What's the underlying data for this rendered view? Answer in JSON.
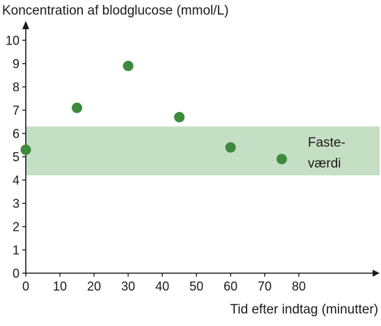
{
  "chart_data": {
    "type": "scatter",
    "title": "Koncentration af blodglucose (mmol/L)",
    "xlabel": "Tid efter indtag (minutter)",
    "ylabel": "",
    "xlim": [
      0,
      100
    ],
    "ylim": [
      0,
      10.5
    ],
    "x_ticks": [
      0,
      10,
      20,
      30,
      40,
      50,
      60,
      70,
      80
    ],
    "y_ticks": [
      0,
      1,
      2,
      3,
      4,
      5,
      6,
      7,
      8,
      9,
      10
    ],
    "grid": false,
    "points": [
      {
        "x": 0,
        "y": 5.3
      },
      {
        "x": 15,
        "y": 7.1
      },
      {
        "x": 30,
        "y": 8.9
      },
      {
        "x": 45,
        "y": 6.7
      },
      {
        "x": 60,
        "y": 5.4
      },
      {
        "x": 75,
        "y": 4.9
      }
    ],
    "band": {
      "y_from": 4.2,
      "y_to": 6.3,
      "label_lines": [
        "Faste-",
        "værdi"
      ]
    },
    "colors": {
      "points": "#3d8a3d",
      "band": "#c5dfc5",
      "axis": "#1a1a1a"
    }
  }
}
